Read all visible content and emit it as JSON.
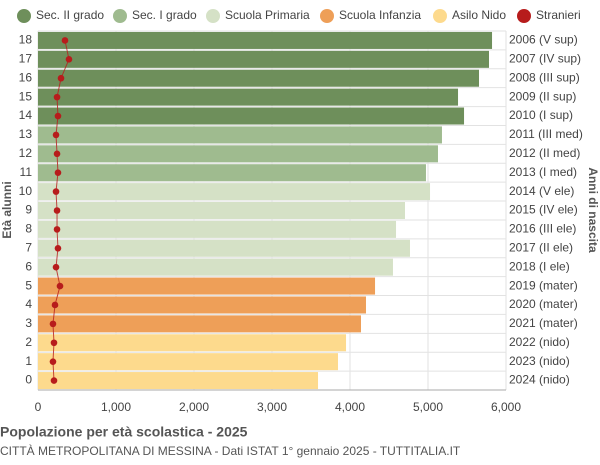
{
  "chart_data": {
    "type": "bar",
    "orientation": "horizontal",
    "title": "Popolazione per età scolastica - 2025",
    "subtitle": "CITTÀ METROPOLITANA DI MESSINA - Dati ISTAT 1° gennaio 2025 - TUTTITALIA.IT",
    "y_label": "Età alunni",
    "y2_label": "Anni di nascita",
    "categories": [
      "18",
      "17",
      "16",
      "15",
      "14",
      "13",
      "12",
      "11",
      "10",
      "9",
      "8",
      "7",
      "6",
      "5",
      "4",
      "3",
      "2",
      "1",
      "0"
    ],
    "year_labels": [
      "2006 (V sup)",
      "2007 (IV sup)",
      "2008 (III sup)",
      "2009 (II sup)",
      "2010 (I sup)",
      "2011 (III med)",
      "2012 (II med)",
      "2013 (I med)",
      "2014 (V ele)",
      "2015 (IV ele)",
      "2016 (III ele)",
      "2017 (II ele)",
      "2018 (I ele)",
      "2019 (mater)",
      "2020 (mater)",
      "2021 (mater)",
      "2022 (nido)",
      "2023 (nido)",
      "2024 (nido)"
    ],
    "series": [
      {
        "name": "Sec. II grado",
        "color": "#6e8f5b",
        "values": [
          5821,
          5782,
          5654,
          5385,
          5462,
          null,
          null,
          null,
          null,
          null,
          null,
          null,
          null,
          null,
          null,
          null,
          null,
          null,
          null
        ]
      },
      {
        "name": "Sec. I grado",
        "color": "#9fbb8f",
        "values": [
          null,
          null,
          null,
          null,
          null,
          5179,
          5128,
          4974,
          null,
          null,
          null,
          null,
          null,
          null,
          null,
          null,
          null,
          null,
          null
        ]
      },
      {
        "name": "Scuola Primaria",
        "color": "#d5e1c6",
        "values": [
          null,
          null,
          null,
          null,
          null,
          null,
          null,
          null,
          5026,
          4705,
          4590,
          4769,
          4551,
          null,
          null,
          null,
          null,
          null,
          null
        ]
      },
      {
        "name": "Scuola Infanzia",
        "color": "#ee9f58",
        "values": [
          null,
          null,
          null,
          null,
          null,
          null,
          null,
          null,
          null,
          null,
          null,
          null,
          null,
          4321,
          4205,
          4141,
          null,
          null,
          null
        ]
      },
      {
        "name": "Asilo Nido",
        "color": "#fdda8d",
        "values": [
          null,
          null,
          null,
          null,
          null,
          null,
          null,
          null,
          null,
          null,
          null,
          null,
          null,
          null,
          null,
          null,
          3949,
          3846,
          3590
        ]
      },
      {
        "name": "Stranieri",
        "type": "line",
        "color": "#b71c1c",
        "values": [
          346,
          397,
          295,
          244,
          256,
          231,
          244,
          256,
          231,
          244,
          244,
          256,
          231,
          282,
          218,
          192,
          205,
          192,
          205
        ]
      }
    ],
    "xlim": [
      0,
      6000
    ],
    "xticks": [
      0,
      {
        "value": 1000,
        "label": "1,000"
      },
      {
        "value": 2000,
        "label": "2,000"
      },
      {
        "value": 3000,
        "label": "3,000"
      },
      {
        "value": 4000,
        "label": "4,000"
      },
      {
        "value": 5000,
        "label": "5,000"
      },
      {
        "value": 6000,
        "label": "6,000"
      }
    ],
    "grid": true
  }
}
